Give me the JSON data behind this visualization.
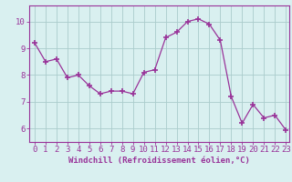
{
  "x": [
    0,
    1,
    2,
    3,
    4,
    5,
    6,
    7,
    8,
    9,
    10,
    11,
    12,
    13,
    14,
    15,
    16,
    17,
    18,
    19,
    20,
    21,
    22,
    23
  ],
  "y": [
    9.2,
    8.5,
    8.6,
    7.9,
    8.0,
    7.6,
    7.3,
    7.4,
    7.4,
    7.3,
    8.1,
    8.2,
    9.4,
    9.6,
    10.0,
    10.1,
    9.9,
    9.3,
    7.2,
    6.2,
    6.9,
    6.4,
    6.5,
    5.95
  ],
  "line_color": "#993399",
  "marker": "+",
  "marker_size": 4,
  "marker_lw": 1.2,
  "bg_color": "#d9f0f0",
  "grid_color": "#aacccc",
  "xlabel": "Windchill (Refroidissement éolien,°C)",
  "xlim_min": -0.5,
  "xlim_max": 23.3,
  "ylim_min": 5.5,
  "ylim_max": 10.6,
  "yticks": [
    6,
    7,
    8,
    9,
    10
  ],
  "xticks": [
    0,
    1,
    2,
    3,
    4,
    5,
    6,
    7,
    8,
    9,
    10,
    11,
    12,
    13,
    14,
    15,
    16,
    17,
    18,
    19,
    20,
    21,
    22,
    23
  ],
  "xlabel_color": "#993399",
  "tick_color": "#993399",
  "spine_color": "#993399",
  "label_fontsize": 6.5,
  "tick_fontsize": 6.5
}
